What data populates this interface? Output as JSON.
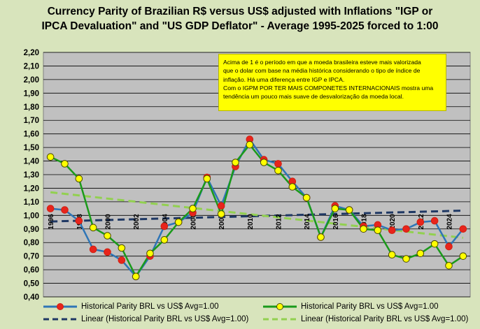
{
  "chart_data": {
    "type": "line",
    "title_line1": "Currency Parity of Brazilian R$ versus US$ adjusted with Inflations \"IGP or",
    "title_line2": "IPCA Devaluation\" and \"US GDP Deflator\" - Average 1995-2025 forced to 1:00",
    "xlabel": "",
    "ylabel": "",
    "ylim": [
      0.4,
      2.2
    ],
    "y_ticks": [
      "0,40",
      "0,50",
      "0,60",
      "0,70",
      "0,80",
      "0,90",
      "1,00",
      "1,10",
      "1,20",
      "1,30",
      "1,40",
      "1,50",
      "1,60",
      "1,70",
      "1,80",
      "1,90",
      "2,00",
      "2,10",
      "2,20"
    ],
    "x": [
      1996,
      1997,
      1998,
      1999,
      2000,
      2001,
      2002,
      2003,
      2004,
      2005,
      2006,
      2007,
      2008,
      2009,
      2010,
      2011,
      2012,
      2013,
      2014,
      2015,
      2016,
      2017,
      2018,
      2019,
      2020,
      2021,
      2022,
      2023,
      2024,
      2025
    ],
    "x_tick_labels": [
      "1996",
      "1998",
      "2000",
      "2002",
      "2004",
      "2006",
      "2008",
      "2010",
      "2012",
      "2014",
      "2016",
      "2018",
      "2020",
      "2022",
      "2024"
    ],
    "grid": true,
    "series": [
      {
        "name": "Historical Parity BRL vs US$ Avg=1.00",
        "line_color": "#2e75b6",
        "marker_color": "#e8241c",
        "marker_edge": "#d02010",
        "values": [
          1.05,
          1.04,
          0.96,
          0.75,
          0.73,
          0.67,
          0.55,
          0.7,
          0.92,
          0.95,
          1.02,
          1.28,
          1.07,
          1.36,
          1.56,
          1.41,
          1.38,
          1.25,
          1.13,
          0.84,
          1.07,
          1.04,
          0.92,
          0.93,
          0.89,
          0.9,
          0.95,
          0.96,
          0.77,
          0.9
        ]
      },
      {
        "name": "Historical Parity BRL vs US$ Avg=1.00",
        "line_color": "#1a9a1a",
        "marker_color": "#ffff00",
        "marker_edge": "#4a4a00",
        "values": [
          1.43,
          1.38,
          1.27,
          0.91,
          0.85,
          0.76,
          0.55,
          0.72,
          0.82,
          0.95,
          1.05,
          1.27,
          1.01,
          1.39,
          1.52,
          1.39,
          1.33,
          1.21,
          1.13,
          0.84,
          1.05,
          1.04,
          0.9,
          0.89,
          0.71,
          0.68,
          0.72,
          0.79,
          0.63,
          0.7
        ]
      }
    ],
    "trendlines": [
      {
        "name": "Linear (Historical Parity BRL vs US$ Avg=1.00)",
        "color": "#1f3864",
        "start": 0.955,
        "end": 1.035
      },
      {
        "name": "Linear (Historical Parity BRL vs US$ Avg=1.00)",
        "color": "#92d050",
        "start": 1.17,
        "end": 0.835
      }
    ],
    "annotation": [
      "Acima de 1 é o período em que a moeda brasileira  esteve mais valorizada",
      "que o dolar com base na média histórica considerando o tipo de índice de",
      "inflação. Há uma diferença entre IGP e IPCA.",
      "Com o IGPM POR TER MAIS COMPONETES INTERNACIONAIS mostra uma",
      "tendência um pouco mais suave de desvalorização da moeda local."
    ]
  }
}
